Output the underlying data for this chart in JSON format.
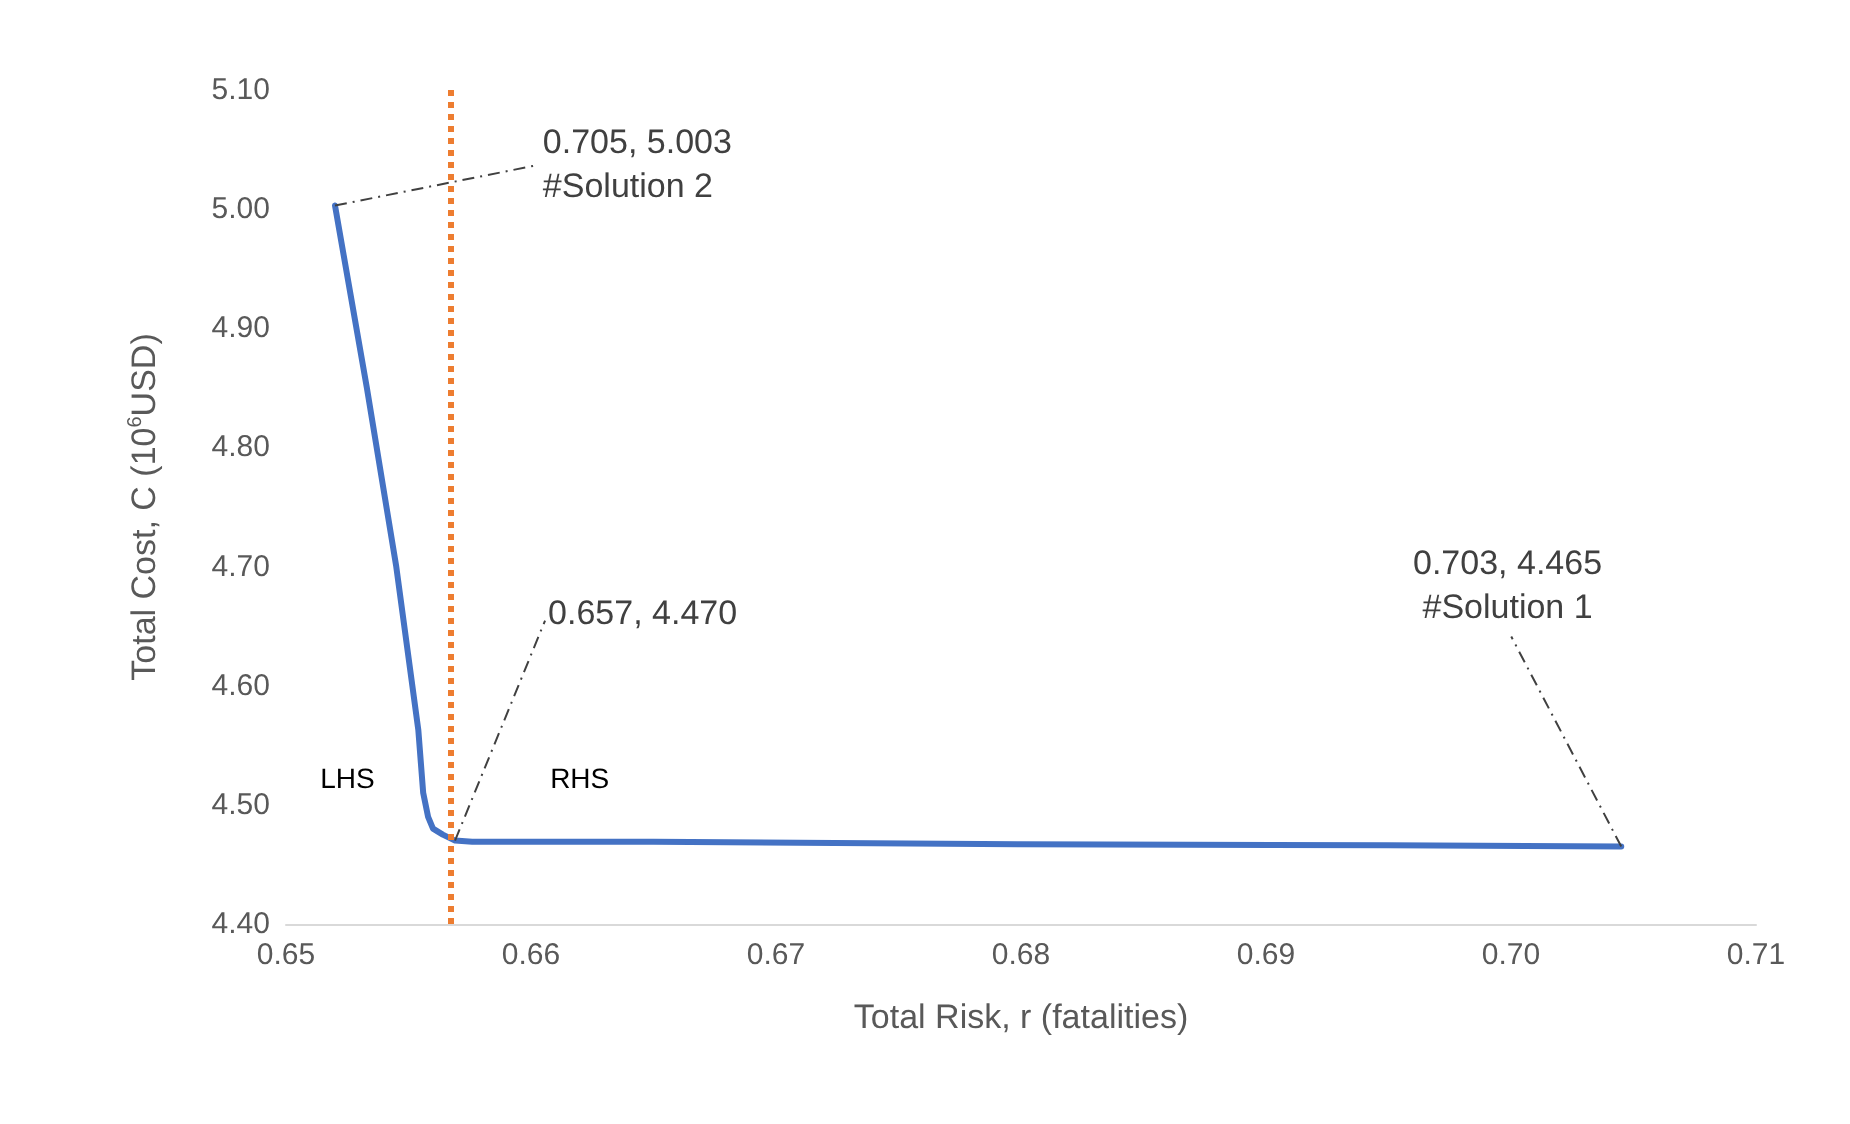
{
  "chart_data": {
    "type": "line",
    "xlabel": "Total Risk, r (fatalities)",
    "ylabel": "Total Cost, C (10$^{6}$USD)",
    "series": [
      {
        "color": "#4472c4",
        "x": [
          0.652,
          0.6533,
          0.6545,
          0.6554,
          0.6556,
          0.6558,
          0.656,
          0.6564,
          0.6569,
          0.6576,
          0.665,
          0.68,
          0.695,
          0.7045
        ],
        "values": [
          5.003,
          4.85,
          4.7,
          4.563,
          4.51,
          4.49,
          4.48,
          4.475,
          4.47,
          4.469,
          4.469,
          4.467,
          4.466,
          4.465
        ]
      }
    ],
    "xlim": [
      0.65,
      0.71
    ],
    "xticks": [
      0.65,
      0.66,
      0.67,
      0.68,
      0.69,
      {
        "value": 0.7,
        "label": "0.70"
      },
      0.71
    ],
    "ylim": [
      4.4,
      5.1
    ],
    "yticks": [
      {
        "value": 4.4,
        "label": "4.40"
      },
      {
        "value": 4.5,
        "label": "4.50"
      },
      {
        "value": 4.6,
        "label": "4.60"
      },
      {
        "value": 4.7,
        "label": "4.70"
      },
      {
        "value": 4.8,
        "label": "4.80"
      },
      {
        "value": 4.9,
        "label": "4.90"
      },
      {
        "value": 5.0,
        "label": "5.00"
      },
      {
        "value": 5.1,
        "label": "5.10"
      }
    ],
    "ref_lines": [
      {
        "axis": "x",
        "value": 0.6567,
        "color": "#ed7d31",
        "line_style": "dotted"
      }
    ],
    "annotations": [
      {
        "text": "0.705, 5.003\n#Solution 2",
        "x": 0.652,
        "y": 5.003
      },
      {
        "text": "0.657, 4.470",
        "x": 0.6569,
        "y": 4.47
      },
      {
        "text": "0.703, 4.465\n#Solution 1",
        "x": 0.7045,
        "y": 4.465
      },
      "LHS",
      "RHS"
    ],
    "grid": false,
    "marker": "none",
    "line_style": "solid"
  }
}
